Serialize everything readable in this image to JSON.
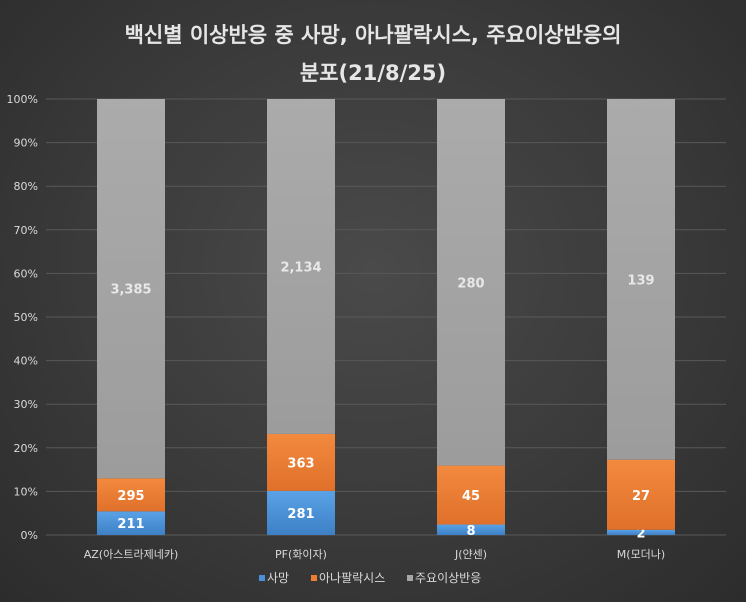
{
  "chart_data": {
    "type": "bar",
    "stacked": "percent",
    "title": "백신별 이상반응 중 사망, 아나팔락시스, 주요이상반응의",
    "subtitle": "분포(21/8/25)",
    "categories": [
      "AZ(아스트라제네카)",
      "PF(화이자)",
      "J(얀센)",
      "M(모더나)"
    ],
    "series": [
      {
        "name": "사망",
        "color": "#4a90d9",
        "values": [
          211,
          281,
          8,
          2
        ]
      },
      {
        "name": "아나팔락시스",
        "color": "#ed7d31",
        "values": [
          295,
          363,
          45,
          27
        ]
      },
      {
        "name": "주요이상반응",
        "color": "#a6a6a6",
        "values": [
          3385,
          2134,
          280,
          139
        ]
      }
    ],
    "data_labels": [
      [
        "211",
        "281",
        "8",
        "2"
      ],
      [
        "295",
        "363",
        "45",
        "27"
      ],
      [
        "3,385",
        "2,134",
        "280",
        "139"
      ]
    ],
    "yticks": [
      "0%",
      "10%",
      "20%",
      "30%",
      "40%",
      "50%",
      "60%",
      "70%",
      "80%",
      "90%",
      "100%"
    ],
    "ylim": [
      0,
      100
    ],
    "grid": true,
    "legend": "bottom"
  }
}
